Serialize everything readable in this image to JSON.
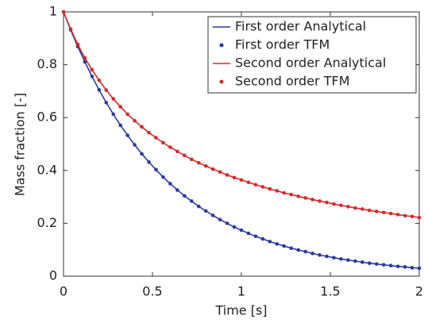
{
  "chart_data": {
    "type": "line",
    "xlabel": "Time [s]",
    "ylabel": "Mass fraction [-]",
    "x": [
      0,
      0.04,
      0.08,
      0.12,
      0.16,
      0.2,
      0.24,
      0.28,
      0.32,
      0.36,
      0.4,
      0.44,
      0.48,
      0.52,
      0.56,
      0.6,
      0.64,
      0.68,
      0.72,
      0.76,
      0.8,
      0.84,
      0.88,
      0.92,
      0.96,
      1,
      1.04,
      1.08,
      1.12,
      1.16,
      1.2,
      1.24,
      1.28,
      1.32,
      1.36,
      1.4,
      1.44,
      1.48,
      1.52,
      1.56,
      1.6,
      1.64,
      1.68,
      1.72,
      1.76,
      1.8,
      1.84,
      1.88,
      1.92,
      1.96,
      2
    ],
    "series": [
      {
        "name": "First order Analytical",
        "color": "#2b3a9e",
        "mode": "line",
        "values": [
          1,
          0.932,
          0.869,
          0.811,
          0.756,
          0.705,
          0.657,
          0.613,
          0.571,
          0.533,
          0.497,
          0.463,
          0.432,
          0.403,
          0.375,
          0.35,
          0.326,
          0.304,
          0.284,
          0.264,
          0.247,
          0.23,
          0.214,
          0.2,
          0.186,
          0.174,
          0.162,
          0.151,
          0.141,
          0.131,
          0.122,
          0.114,
          0.106,
          0.099,
          0.093,
          0.086,
          0.08,
          0.075,
          0.07,
          0.065,
          0.061,
          0.057,
          0.053,
          0.049,
          0.046,
          0.043,
          0.04,
          0.037,
          0.035,
          0.032,
          0.03
        ]
      },
      {
        "name": "First order TFM",
        "color": "#2b3a9e",
        "mode": "markers",
        "values": [
          1,
          0.932,
          0.869,
          0.811,
          0.756,
          0.705,
          0.657,
          0.613,
          0.571,
          0.533,
          0.497,
          0.463,
          0.432,
          0.403,
          0.375,
          0.35,
          0.326,
          0.304,
          0.284,
          0.264,
          0.247,
          0.23,
          0.214,
          0.2,
          0.186,
          0.174,
          0.162,
          0.151,
          0.141,
          0.131,
          0.122,
          0.114,
          0.106,
          0.099,
          0.093,
          0.086,
          0.08,
          0.075,
          0.07,
          0.065,
          0.061,
          0.057,
          0.053,
          0.049,
          0.046,
          0.043,
          0.04,
          0.037,
          0.035,
          0.032,
          0.03
        ]
      },
      {
        "name": "Second order Analytical",
        "color": "#d42a2a",
        "mode": "line",
        "values": [
          1,
          0.935,
          0.877,
          0.826,
          0.781,
          0.741,
          0.704,
          0.671,
          0.641,
          0.613,
          0.588,
          0.565,
          0.543,
          0.524,
          0.505,
          0.488,
          0.472,
          0.457,
          0.442,
          0.429,
          0.417,
          0.405,
          0.394,
          0.383,
          0.373,
          0.364,
          0.355,
          0.346,
          0.338,
          0.33,
          0.323,
          0.315,
          0.309,
          0.302,
          0.296,
          0.29,
          0.284,
          0.279,
          0.273,
          0.268,
          0.263,
          0.258,
          0.254,
          0.249,
          0.245,
          0.241,
          0.237,
          0.233,
          0.229,
          0.226,
          0.222
        ]
      },
      {
        "name": "Second order TFM",
        "color": "#d42a2a",
        "mode": "markers",
        "values": [
          1,
          0.935,
          0.877,
          0.826,
          0.781,
          0.741,
          0.704,
          0.671,
          0.641,
          0.613,
          0.588,
          0.565,
          0.543,
          0.524,
          0.505,
          0.488,
          0.472,
          0.457,
          0.442,
          0.429,
          0.417,
          0.405,
          0.394,
          0.383,
          0.373,
          0.364,
          0.355,
          0.346,
          0.338,
          0.33,
          0.323,
          0.315,
          0.309,
          0.302,
          0.296,
          0.29,
          0.284,
          0.279,
          0.273,
          0.268,
          0.263,
          0.258,
          0.254,
          0.249,
          0.245,
          0.241,
          0.237,
          0.233,
          0.229,
          0.226,
          0.222
        ]
      }
    ],
    "xlim": [
      0,
      2
    ],
    "xticks": [
      0,
      0.5,
      1,
      1.5,
      2
    ],
    "ylim": [
      0,
      1
    ],
    "yticks": [
      0,
      0.2,
      0.4,
      0.6,
      0.8,
      1
    ],
    "grid": false,
    "legend": "top-right"
  }
}
